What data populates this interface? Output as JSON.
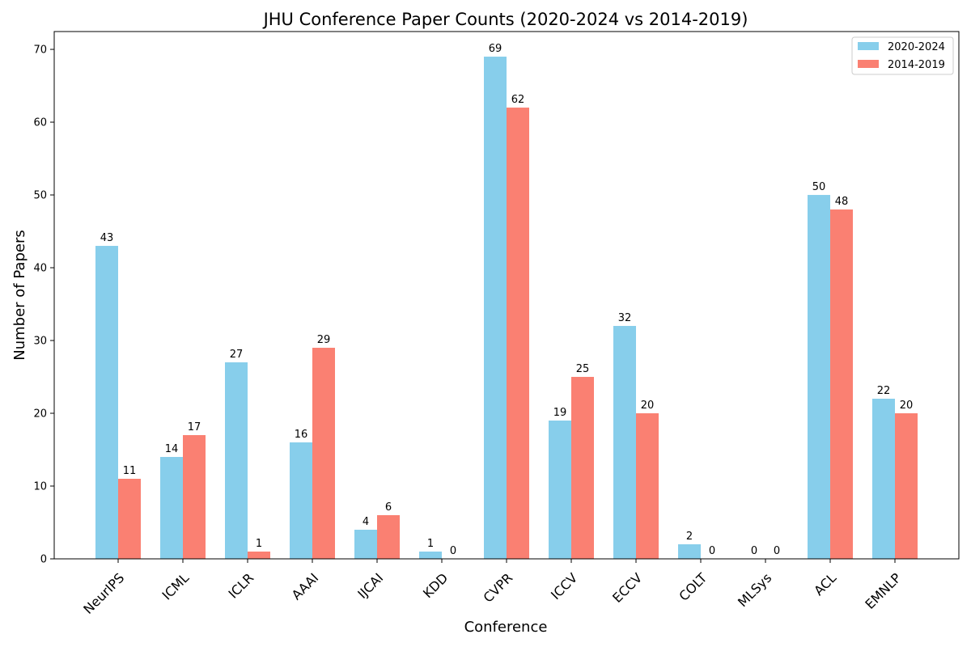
{
  "chart_data": {
    "type": "bar",
    "title": "JHU Conference Paper Counts (2020-2024 vs 2014-2019)",
    "xlabel": "Conference",
    "ylabel": "Number of Papers",
    "categories": [
      "NeurIPS",
      "ICML",
      "ICLR",
      "AAAI",
      "IJCAI",
      "KDD",
      "CVPR",
      "ICCV",
      "ECCV",
      "COLT",
      "MLSys",
      "ACL",
      "EMNLP"
    ],
    "series": [
      {
        "name": "2020-2024",
        "color": "#87ceeb",
        "values": [
          43,
          14,
          27,
          16,
          4,
          1,
          69,
          19,
          32,
          2,
          0,
          50,
          22
        ]
      },
      {
        "name": "2014-2019",
        "color": "#fa8072",
        "values": [
          11,
          17,
          1,
          29,
          6,
          0,
          62,
          25,
          20,
          0,
          0,
          48,
          20
        ]
      }
    ],
    "ylim": [
      0,
      72.45
    ],
    "yticks": [
      0,
      10,
      20,
      30,
      40,
      50,
      60,
      70
    ],
    "grid": false,
    "legend_position": "top-right"
  }
}
